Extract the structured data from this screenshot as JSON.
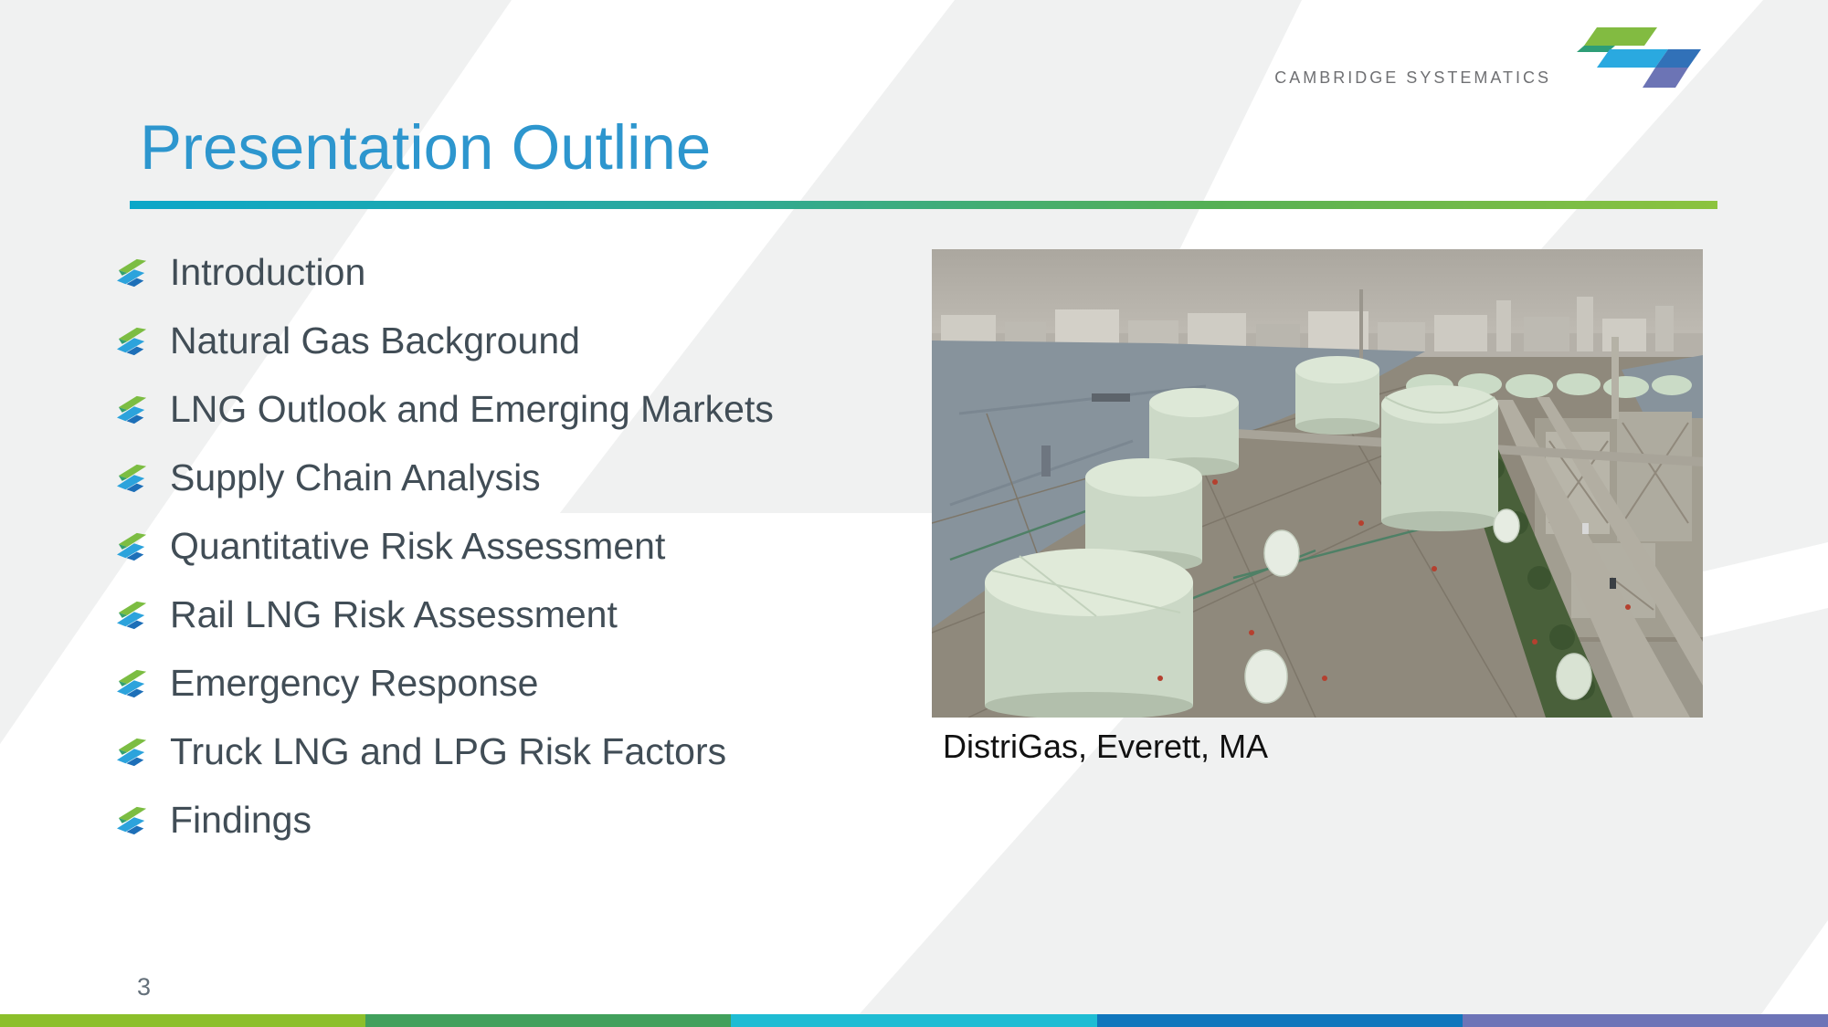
{
  "logo": {
    "text": "CAMBRIDGE SYSTEMATICS"
  },
  "header": {
    "title": "Presentation Outline"
  },
  "outline": {
    "items": [
      "Introduction",
      "Natural Gas Background",
      "LNG Outlook and Emerging Markets",
      "Supply Chain Analysis",
      "Quantitative Risk Assessment",
      "Rail LNG Risk Assessment",
      "Emergency Response",
      "Truck LNG and LPG Risk Factors",
      "Findings"
    ]
  },
  "photo": {
    "caption": "DistriGas, Everett, MA",
    "description": "Aerial photo of pale-green LNG storage tanks at a waterfront terminal with harbor, roads and industrial plant"
  },
  "footer": {
    "page_number": "3"
  },
  "colors": {
    "title": "#2D96CE",
    "body_text": "#414D56",
    "caption_text": "#111111",
    "page_number_text": "#64707A",
    "logo_text": "#6F7073",
    "background_gray": "#F0F1F1",
    "title_rule_gradient": [
      "#0BA7C9",
      "#2AA99C",
      "#55B055",
      "#8CC33E"
    ],
    "footer_segments": [
      "#8CBF2B",
      "#41A05C",
      "#1FBCD3",
      "#1076BC",
      "#6D74B7"
    ],
    "bullet": {
      "green": "#7CBD42",
      "green_dark": "#33A070",
      "blue": "#2CA3DC",
      "blue_dark": "#1D6FB8"
    },
    "logo_mark": [
      "#82BB41",
      "#2E9E77",
      "#2AA9E0",
      "#3171B8",
      "#6C74B5"
    ]
  }
}
